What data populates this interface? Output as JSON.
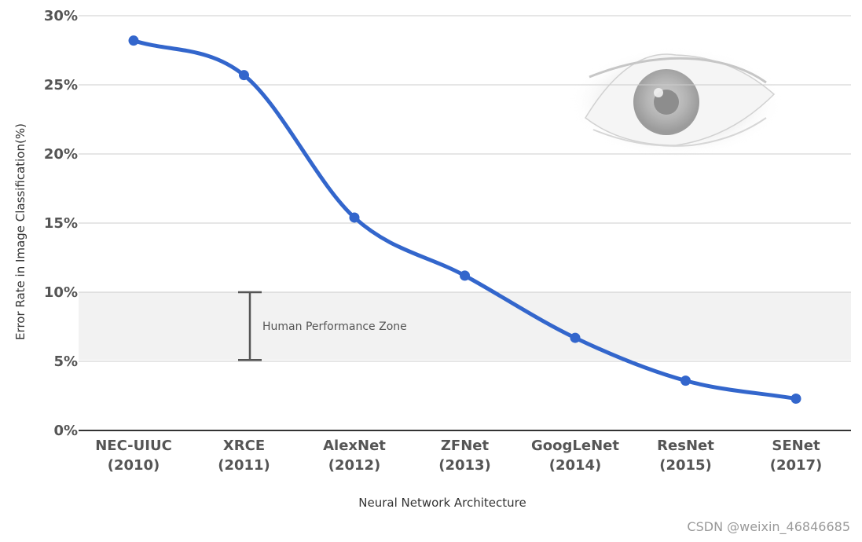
{
  "colors": {
    "line": "#3366cc",
    "zone_fill": "#f2f2f2",
    "grid": "#cccccc",
    "axis": "#333333",
    "tick_text": "#555555"
  },
  "icons": {
    "decoration": "eye-image"
  },
  "watermark": "CSDN @weixin_46846685",
  "chart_data": {
    "type": "line",
    "title": "",
    "xlabel": "Neural Network Architecture",
    "ylabel": "Error Rate in Image Classification(%)",
    "ylim": [
      0,
      30
    ],
    "yticks": [
      0,
      5,
      10,
      15,
      20,
      25,
      30
    ],
    "ytick_labels": [
      "0%",
      "5%",
      "10%",
      "15%",
      "20%",
      "25%",
      "30%"
    ],
    "grid": true,
    "categories": [
      {
        "name": "NEC-UIUC",
        "year": "(2010)"
      },
      {
        "name": "XRCE",
        "year": "(2011)"
      },
      {
        "name": "AlexNet",
        "year": "(2012)"
      },
      {
        "name": "ZFNet",
        "year": "(2013)"
      },
      {
        "name": "GoogLeNet",
        "year": "(2014)"
      },
      {
        "name": "ResNet",
        "year": "(2015)"
      },
      {
        "name": "SENet",
        "year": "(2017)"
      }
    ],
    "series": [
      {
        "values": [
          28.2,
          25.7,
          15.4,
          11.2,
          6.7,
          3.6,
          2.3
        ]
      }
    ],
    "annotations": {
      "human_zone": {
        "label": "Human Performance Zone",
        "range": [
          5.1,
          10
        ]
      }
    }
  }
}
